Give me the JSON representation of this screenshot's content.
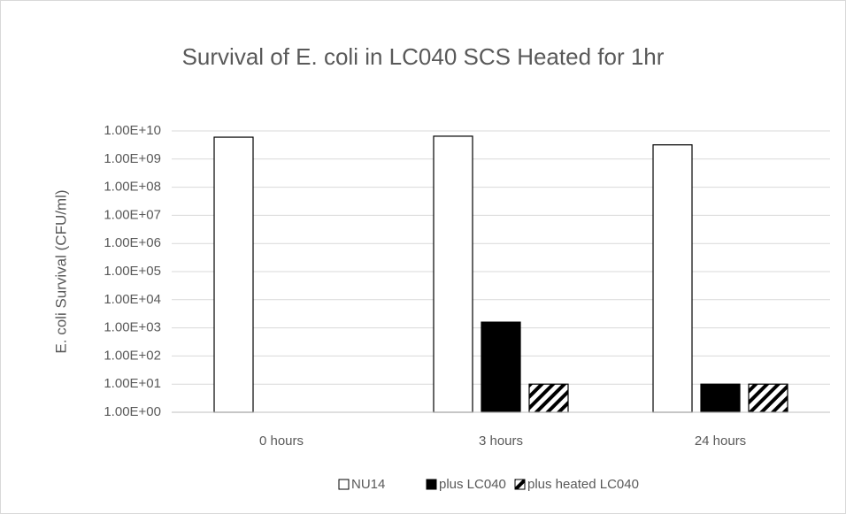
{
  "chart_data": {
    "type": "bar",
    "title": "Survival of E. coli in LC040 SCS Heated for 1hr",
    "ylabel": "E. coli Survival (CFU/ml)",
    "categories": [
      "0 hours",
      "3 hours",
      "24 hours"
    ],
    "series": [
      {
        "name": "NU14",
        "color": "#ffffff",
        "values": [
          6000000000,
          6500000000,
          3200000000
        ]
      },
      {
        "name": "plus LC040",
        "color": "#000000",
        "values": [
          null,
          1600,
          10
        ]
      },
      {
        "name": "plus heated LC040",
        "color": "#ffffff",
        "hatch": true,
        "values": [
          null,
          10,
          10
        ]
      }
    ],
    "log_scale": true,
    "ylim": [
      1,
      10000000000
    ],
    "yticks": [
      {
        "value": 1,
        "label": "1.00E+00"
      },
      {
        "value": 10,
        "label": "1.00E+01"
      },
      {
        "value": 100,
        "label": "1.00E+02"
      },
      {
        "value": 1000,
        "label": "1.00E+03"
      },
      {
        "value": 10000,
        "label": "1.00E+04"
      },
      {
        "value": 100000,
        "label": "1.00E+05"
      },
      {
        "value": 1000000,
        "label": "1.00E+06"
      },
      {
        "value": 10000000,
        "label": "1.00E+07"
      },
      {
        "value": 100000000,
        "label": "1.00E+08"
      },
      {
        "value": 1000000000,
        "label": "1.00E+09"
      },
      {
        "value": 10000000000,
        "label": "1.00E+10"
      }
    ],
    "grid": true,
    "legend": "bottom"
  }
}
